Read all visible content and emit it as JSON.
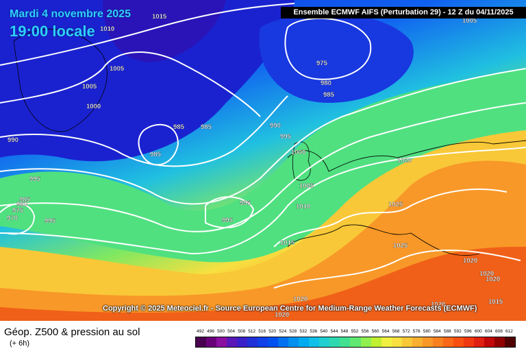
{
  "header": {
    "date": "Mardi 4 novembre 2025",
    "time": "19:00 locale",
    "model": "Ensemble ECMWF AIFS  (Perturbation 29)  -  12 Z du 04/11/2025"
  },
  "copyright": "Copyright © 2025 Meteociel.fr - Source European Centre for Medium-Range Weather Forecasts (ECMWF)",
  "footer": {
    "product": "Géop. Z500 & pression au sol",
    "step": "(+ 6h)"
  },
  "legend": {
    "ticks": [
      "492",
      "496",
      "500",
      "504",
      "508",
      "512",
      "516",
      "520",
      "524",
      "528",
      "532",
      "536",
      "540",
      "544",
      "548",
      "552",
      "556",
      "560",
      "564",
      "568",
      "572",
      "576",
      "580",
      "584",
      "588",
      "592",
      "596",
      "600",
      "604",
      "608",
      "612"
    ],
    "colors": [
      "#4a0050",
      "#6a0078",
      "#8a10a0",
      "#5a18b8",
      "#3a20c8",
      "#2030d8",
      "#1040e8",
      "#0050f0",
      "#0070f0",
      "#0090f0",
      "#00aaf0",
      "#10c0e8",
      "#20d0d0",
      "#30d8b0",
      "#40e090",
      "#60e870",
      "#90f050",
      "#c0f030",
      "#f0f040",
      "#f8e040",
      "#f8c838",
      "#f8b030",
      "#f89828",
      "#f88020",
      "#f86818",
      "#f85010",
      "#f03810",
      "#e02010",
      "#c00808",
      "#900000",
      "#500000"
    ]
  },
  "isobars": {
    "labels": [
      "1015",
      "1010",
      "1005",
      "1005",
      "1000",
      "990",
      "995",
      "985",
      "985",
      "985",
      "975",
      "980",
      "985",
      "990",
      "995",
      "1000",
      "1005",
      "1010",
      "1015",
      "1020",
      "1025",
      "1025",
      "1020",
      "1020",
      "1020",
      "1015",
      "985",
      "980",
      "975",
      "970",
      "995",
      "995",
      "995",
      "1020",
      "1020",
      "1020",
      "1005"
    ]
  }
}
